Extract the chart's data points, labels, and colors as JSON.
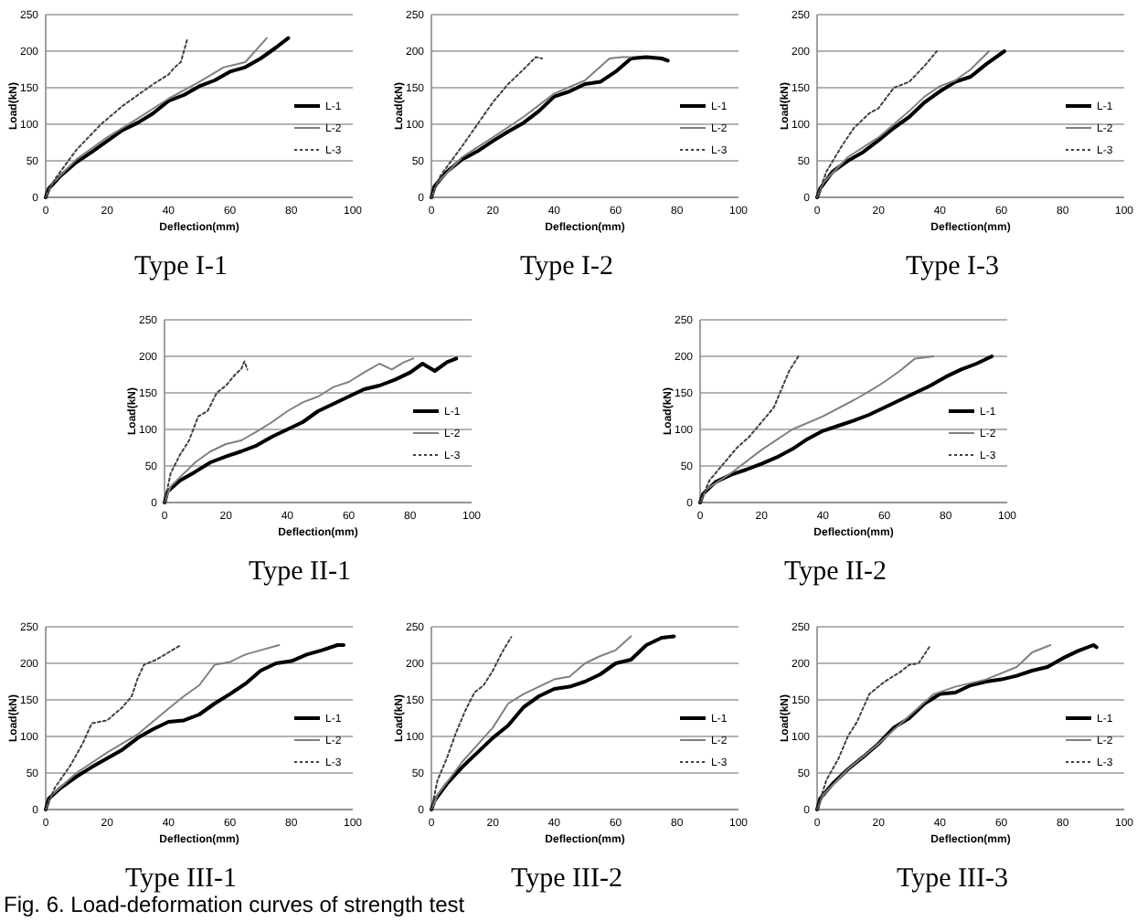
{
  "chart_data": [
    {
      "type": "line",
      "title": "Type I-1",
      "xlabel": "Deflection(mm)",
      "ylabel": "Load(kN)",
      "xlim": [
        0,
        100
      ],
      "xticks": [
        0,
        20,
        40,
        60,
        80,
        100
      ],
      "ylim": [
        0,
        250
      ],
      "yticks": [
        0,
        50,
        100,
        150,
        200,
        250
      ],
      "grid": "y",
      "legend": "bottom right",
      "series": [
        {
          "name": "L-1",
          "color": "#000000",
          "line_style": "solid",
          "x": [
            0,
            1,
            5,
            10,
            15,
            20,
            25,
            30,
            35,
            40,
            45,
            50,
            55,
            60,
            65,
            70,
            75,
            79
          ],
          "values": [
            0,
            12,
            30,
            48,
            62,
            77,
            92,
            102,
            115,
            132,
            140,
            152,
            160,
            172,
            178,
            190,
            205,
            218
          ]
        },
        {
          "name": "L-2",
          "color": "#808080",
          "line_style": "solid",
          "x": [
            0,
            2,
            10,
            20,
            30,
            40,
            50,
            58,
            65,
            72
          ],
          "values": [
            0,
            18,
            52,
            82,
            108,
            135,
            158,
            178,
            185,
            218
          ]
        },
        {
          "name": "L-3",
          "color": "#404040",
          "line_style": "dotted",
          "x": [
            0,
            3,
            10,
            18,
            25,
            30,
            35,
            40,
            42,
            44,
            46
          ],
          "values": [
            0,
            25,
            65,
            100,
            125,
            140,
            155,
            168,
            178,
            185,
            215
          ]
        }
      ]
    },
    {
      "type": "line",
      "title": "Type I-2",
      "xlabel": "Deflection(mm)",
      "ylabel": "Load(kN)",
      "xlim": [
        0,
        100
      ],
      "xticks": [
        0,
        20,
        40,
        60,
        80,
        100
      ],
      "ylim": [
        0,
        250
      ],
      "yticks": [
        0,
        50,
        100,
        150,
        200,
        250
      ],
      "grid": "y",
      "legend": "bottom right",
      "series": [
        {
          "name": "L-1",
          "color": "#000000",
          "line_style": "solid",
          "x": [
            0,
            1,
            5,
            10,
            15,
            20,
            25,
            30,
            35,
            40,
            45,
            50,
            55,
            60,
            65,
            70,
            75,
            77
          ],
          "values": [
            0,
            15,
            35,
            52,
            63,
            77,
            90,
            102,
            118,
            138,
            145,
            155,
            158,
            172,
            190,
            192,
            190,
            187
          ]
        },
        {
          "name": "L-2",
          "color": "#808080",
          "line_style": "solid",
          "x": [
            0,
            2,
            10,
            20,
            30,
            40,
            50,
            58,
            62,
            65
          ],
          "values": [
            0,
            20,
            55,
            82,
            110,
            142,
            160,
            190,
            192,
            192
          ]
        },
        {
          "name": "L-3",
          "color": "#404040",
          "line_style": "dotted",
          "x": [
            0,
            3,
            10,
            15,
            20,
            25,
            30,
            34,
            36
          ],
          "values": [
            0,
            30,
            70,
            100,
            130,
            155,
            175,
            192,
            190
          ]
        }
      ]
    },
    {
      "type": "line",
      "title": "Type I-3",
      "xlabel": "Deflection(mm)",
      "ylabel": "Load(kN)",
      "xlim": [
        0,
        100
      ],
      "xticks": [
        0,
        20,
        40,
        60,
        80,
        100
      ],
      "ylim": [
        0,
        250
      ],
      "yticks": [
        0,
        50,
        100,
        150,
        200,
        250
      ],
      "grid": "y",
      "legend": "bottom right",
      "series": [
        {
          "name": "L-1",
          "color": "#000000",
          "line_style": "solid",
          "x": [
            0,
            1,
            5,
            10,
            15,
            20,
            25,
            30,
            35,
            40,
            45,
            50,
            55,
            61
          ],
          "values": [
            0,
            12,
            35,
            50,
            62,
            78,
            95,
            110,
            130,
            145,
            158,
            165,
            182,
            200
          ]
        },
        {
          "name": "L-2",
          "color": "#808080",
          "line_style": "solid",
          "x": [
            0,
            2,
            10,
            20,
            30,
            35,
            40,
            45,
            50,
            56
          ],
          "values": [
            0,
            20,
            55,
            82,
            118,
            138,
            152,
            160,
            175,
            200
          ]
        },
        {
          "name": "L-3",
          "color": "#404040",
          "line_style": "dotted",
          "x": [
            0,
            3,
            8,
            12,
            17,
            20,
            25,
            30,
            35,
            39
          ],
          "values": [
            0,
            35,
            70,
            95,
            115,
            122,
            150,
            158,
            180,
            200
          ]
        }
      ]
    },
    {
      "type": "line",
      "title": "Type II-1",
      "xlabel": "Deflection(mm)",
      "ylabel": "Load(kN)",
      "xlim": [
        0,
        100
      ],
      "xticks": [
        0,
        20,
        40,
        60,
        80,
        100
      ],
      "ylim": [
        0,
        250
      ],
      "yticks": [
        0,
        50,
        100,
        150,
        200,
        250
      ],
      "grid": "y",
      "legend": "bottom right",
      "series": [
        {
          "name": "L-1",
          "color": "#000000",
          "line_style": "solid",
          "x": [
            0,
            1,
            5,
            10,
            15,
            20,
            25,
            30,
            35,
            40,
            45,
            50,
            55,
            60,
            65,
            70,
            75,
            80,
            84,
            88,
            92,
            95
          ],
          "values": [
            0,
            15,
            30,
            42,
            55,
            63,
            70,
            78,
            90,
            100,
            110,
            125,
            135,
            145,
            155,
            160,
            168,
            178,
            190,
            180,
            192,
            197
          ]
        },
        {
          "name": "L-2",
          "color": "#808080",
          "line_style": "solid",
          "x": [
            0,
            2,
            10,
            15,
            20,
            25,
            30,
            35,
            40,
            45,
            50,
            55,
            60,
            65,
            70,
            74,
            78,
            81
          ],
          "values": [
            0,
            22,
            55,
            70,
            80,
            85,
            97,
            110,
            125,
            137,
            145,
            158,
            165,
            178,
            190,
            182,
            192,
            197
          ]
        },
        {
          "name": "L-3",
          "color": "#404040",
          "line_style": "dotted",
          "x": [
            0,
            2,
            5,
            8,
            11,
            14,
            17,
            20,
            23,
            25,
            26,
            27
          ],
          "values": [
            0,
            40,
            65,
            85,
            118,
            125,
            150,
            160,
            175,
            183,
            193,
            182
          ]
        }
      ]
    },
    {
      "type": "line",
      "title": "Type II-2",
      "xlabel": "Deflection(mm)",
      "ylabel": "Load(kN)",
      "xlim": [
        0,
        100
      ],
      "xticks": [
        0,
        20,
        40,
        60,
        80,
        100
      ],
      "ylim": [
        0,
        250
      ],
      "yticks": [
        0,
        50,
        100,
        150,
        200,
        250
      ],
      "grid": "y",
      "legend": "bottom right",
      "series": [
        {
          "name": "L-1",
          "color": "#000000",
          "line_style": "solid",
          "x": [
            0,
            1,
            5,
            10,
            15,
            20,
            25,
            30,
            35,
            40,
            45,
            50,
            55,
            60,
            65,
            70,
            75,
            80,
            85,
            90,
            95
          ],
          "values": [
            0,
            12,
            28,
            38,
            45,
            53,
            62,
            73,
            87,
            98,
            105,
            112,
            120,
            130,
            140,
            150,
            160,
            172,
            182,
            190,
            200
          ]
        },
        {
          "name": "L-2",
          "color": "#808080",
          "line_style": "solid",
          "x": [
            0,
            2,
            10,
            20,
            30,
            40,
            50,
            55,
            60,
            65,
            70,
            76
          ],
          "values": [
            0,
            18,
            40,
            72,
            100,
            118,
            140,
            152,
            165,
            180,
            197,
            200
          ]
        },
        {
          "name": "L-3",
          "color": "#404040",
          "line_style": "dotted",
          "x": [
            0,
            3,
            8,
            12,
            16,
            20,
            24,
            27,
            29,
            32
          ],
          "values": [
            0,
            30,
            55,
            75,
            90,
            110,
            130,
            160,
            180,
            200
          ]
        }
      ]
    },
    {
      "type": "line",
      "title": "Type III-1",
      "xlabel": "Deflection(mm)",
      "ylabel": "Load(kN)",
      "xlim": [
        0,
        100
      ],
      "xticks": [
        0,
        20,
        40,
        60,
        80,
        100
      ],
      "ylim": [
        0,
        250
      ],
      "yticks": [
        0,
        50,
        100,
        150,
        200,
        250
      ],
      "grid": "y",
      "legend": "bottom right",
      "annotations": [
        "Fig. 6. Load-deformation curves of strength test"
      ],
      "series": [
        {
          "name": "L-1",
          "color": "#000000",
          "line_style": "solid",
          "x": [
            0,
            1,
            5,
            10,
            15,
            20,
            25,
            30,
            35,
            40,
            45,
            50,
            55,
            60,
            65,
            70,
            75,
            80,
            85,
            90,
            95,
            97
          ],
          "values": [
            0,
            15,
            30,
            45,
            58,
            70,
            82,
            98,
            110,
            120,
            122,
            130,
            145,
            158,
            172,
            190,
            200,
            203,
            212,
            218,
            225,
            225
          ]
        },
        {
          "name": "L-2",
          "color": "#808080",
          "line_style": "solid",
          "x": [
            0,
            2,
            10,
            20,
            30,
            40,
            45,
            50,
            55,
            60,
            65,
            70,
            76
          ],
          "values": [
            0,
            20,
            50,
            78,
            103,
            138,
            155,
            170,
            198,
            202,
            212,
            218,
            225
          ]
        },
        {
          "name": "L-3",
          "color": "#404040",
          "line_style": "dotted",
          "x": [
            0,
            3,
            8,
            12,
            15,
            20,
            25,
            28,
            30,
            32,
            36,
            40,
            44
          ],
          "values": [
            0,
            30,
            60,
            90,
            118,
            122,
            140,
            155,
            180,
            198,
            205,
            215,
            225
          ]
        }
      ]
    },
    {
      "type": "line",
      "title": "Type III-2",
      "xlabel": "Deflection(mm)",
      "ylabel": "Load(kN)",
      "xlim": [
        0,
        100
      ],
      "xticks": [
        0,
        20,
        40,
        60,
        80,
        100
      ],
      "ylim": [
        0,
        250
      ],
      "yticks": [
        0,
        50,
        100,
        150,
        200,
        250
      ],
      "grid": "y",
      "legend": "bottom right",
      "series": [
        {
          "name": "L-1",
          "color": "#000000",
          "line_style": "solid",
          "x": [
            0,
            1,
            5,
            10,
            15,
            20,
            25,
            30,
            35,
            40,
            45,
            50,
            55,
            60,
            65,
            70,
            75,
            79
          ],
          "values": [
            0,
            12,
            35,
            58,
            78,
            98,
            115,
            140,
            155,
            165,
            168,
            175,
            185,
            200,
            205,
            225,
            235,
            237
          ]
        },
        {
          "name": "L-2",
          "color": "#808080",
          "line_style": "solid",
          "x": [
            0,
            2,
            10,
            20,
            25,
            30,
            35,
            40,
            45,
            50,
            55,
            60,
            65
          ],
          "values": [
            0,
            20,
            65,
            112,
            145,
            158,
            168,
            178,
            182,
            200,
            210,
            218,
            237
          ]
        },
        {
          "name": "L-3",
          "color": "#404040",
          "line_style": "dotted",
          "x": [
            0,
            2,
            5,
            8,
            11,
            14,
            17,
            20,
            23,
            26
          ],
          "values": [
            0,
            40,
            70,
            105,
            135,
            160,
            170,
            190,
            215,
            236
          ]
        }
      ]
    },
    {
      "type": "line",
      "title": "Type III-3",
      "xlabel": "Deflection(mm)",
      "ylabel": "Load(kN)",
      "xlim": [
        0,
        100
      ],
      "xticks": [
        0,
        20,
        40,
        60,
        80,
        100
      ],
      "ylim": [
        0,
        250
      ],
      "yticks": [
        0,
        50,
        100,
        150,
        200,
        250
      ],
      "grid": "y",
      "legend": "bottom right",
      "series": [
        {
          "name": "L-1",
          "color": "#000000",
          "line_style": "solid",
          "x": [
            0,
            1,
            5,
            10,
            15,
            20,
            25,
            30,
            35,
            40,
            45,
            50,
            55,
            60,
            65,
            70,
            75,
            80,
            85,
            90,
            91
          ],
          "values": [
            0,
            15,
            35,
            55,
            72,
            90,
            112,
            125,
            145,
            158,
            160,
            170,
            175,
            178,
            183,
            190,
            195,
            207,
            217,
            225,
            222
          ]
        },
        {
          "name": "L-2",
          "color": "#808080",
          "line_style": "solid",
          "x": [
            0,
            2,
            10,
            20,
            30,
            38,
            45,
            55,
            65,
            70,
            76
          ],
          "values": [
            0,
            20,
            55,
            90,
            128,
            158,
            168,
            178,
            195,
            215,
            225
          ]
        },
        {
          "name": "L-3",
          "color": "#404040",
          "line_style": "dotted",
          "x": [
            0,
            3,
            7,
            10,
            13,
            17,
            22,
            27,
            30,
            33,
            37
          ],
          "values": [
            0,
            40,
            70,
            100,
            120,
            158,
            175,
            188,
            198,
            200,
            225
          ]
        }
      ]
    }
  ]
}
